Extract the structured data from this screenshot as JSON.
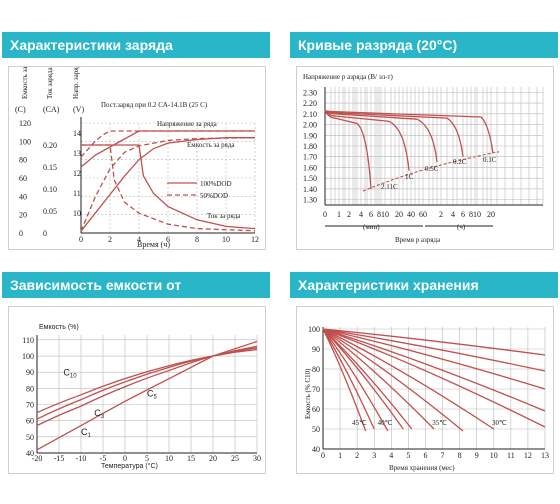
{
  "panels": {
    "charge": {
      "title": "Характеристики заряда"
    },
    "discharge": {
      "title": "Кривые разряда (20°С)"
    },
    "temperature": {
      "title": "Зависимость емкости от температуры"
    },
    "storage": {
      "title": "Характеристики хранения"
    }
  },
  "chart_data": [
    {
      "type": "line",
      "id": "charge",
      "axis_labels": {
        "capacity": {
          "name": "Емкость заряда",
          "unit": "(C)"
        },
        "current": {
          "name": "Ток заряда",
          "unit": "(CA)"
        },
        "voltage": {
          "name": "Напр. заряда",
          "unit": "(V)"
        },
        "x": "Время (ч)"
      },
      "subtitle": "Пост.заряд при 0.2  CA-14.1В (25 C)",
      "capacity_ticks": [
        "120",
        "100",
        "80",
        "60",
        "40",
        "20",
        "0"
      ],
      "current_ticks": [
        "0.20",
        "0.15",
        "0.10",
        "0.05",
        "0"
      ],
      "voltage_ticks": [
        "14",
        "13",
        "12",
        "11",
        "10"
      ],
      "x_ticks": [
        0,
        2,
        4,
        6,
        8,
        10,
        12
      ],
      "xlim": [
        0,
        12
      ],
      "annotations": [
        "Напряжение за  ряда",
        "Емкость за ряда",
        "Ток за ряда"
      ],
      "legend": [
        "100%DOD",
        "50%DOD"
      ],
      "series": [
        {
          "name": "Напряжение за  ряда 100%DOD",
          "style": "solid",
          "x": [
            0,
            0.5,
            1,
            2,
            3,
            4,
            4.5,
            6,
            8,
            10,
            12
          ],
          "y_voltage": [
            12.3,
            12.6,
            12.9,
            13.3,
            13.7,
            14.1,
            14.1,
            14.1,
            14.1,
            14.1,
            14.1
          ]
        },
        {
          "name": "Напряжение за  ряда 50%DOD",
          "style": "dashed",
          "x": [
            0,
            0.5,
            1,
            1.5,
            2,
            12
          ],
          "y_voltage": [
            12.8,
            13.2,
            13.6,
            13.9,
            14.1,
            14.1
          ]
        },
        {
          "name": "Емкость за ряда 100%DOD",
          "style": "solid",
          "x": [
            0,
            1,
            2,
            3,
            4,
            5,
            6,
            8,
            10,
            12
          ],
          "y_capacity": [
            2,
            22,
            42,
            62,
            80,
            92,
            98,
            102,
            104,
            104
          ]
        },
        {
          "name": "Емкость за ряда 50%DOD",
          "style": "dashed",
          "x": [
            0,
            1,
            2,
            3,
            4,
            6,
            8,
            12
          ],
          "y_capacity": [
            2,
            40,
            70,
            88,
            95,
            101,
            103,
            104
          ]
        },
        {
          "name": "Ток за ряда 100%DOD",
          "style": "solid",
          "x": [
            0,
            4,
            4.3,
            5,
            6,
            8,
            10,
            12
          ],
          "y_current": [
            0.2,
            0.2,
            0.13,
            0.09,
            0.06,
            0.03,
            0.015,
            0.01
          ]
        },
        {
          "name": "Ток за ряда 50%DOD",
          "style": "dashed",
          "x": [
            0,
            2,
            2.3,
            3,
            4,
            6,
            8,
            12
          ],
          "y_current": [
            0.2,
            0.2,
            0.12,
            0.07,
            0.045,
            0.02,
            0.01,
            0.005
          ]
        }
      ]
    },
    {
      "type": "line",
      "id": "discharge",
      "ylabel": "Напряжение р азряда (В/ эл-т)",
      "xlabel": "Время р азряда",
      "x_unit_labels": [
        "(мин)",
        "(ч)"
      ],
      "y_ticks": [
        "2.30",
        "2.20",
        "2.10",
        "2.00",
        "1.90",
        "1.80",
        "1.70",
        "1.60",
        "1.50",
        "1.40",
        "1.30"
      ],
      "ylim": [
        1.25,
        2.35
      ],
      "x_ticks_min": [
        "0",
        "1",
        "2",
        "4",
        "6",
        "8",
        "10",
        "20",
        "40",
        "60"
      ],
      "x_ticks_h": [
        "2",
        "4",
        "6",
        "8",
        "10",
        "20"
      ],
      "series": [
        {
          "name": "2.11C",
          "end_time": "~7 мин",
          "end_voltage": 1.4
        },
        {
          "name": "1C",
          "end_time": "~30 мин",
          "end_voltage": 1.57
        },
        {
          "name": "0.5C",
          "end_time": "~1.5 ч",
          "end_voltage": 1.65
        },
        {
          "name": "0.2C",
          "end_time": "~4 ч",
          "end_voltage": 1.7
        },
        {
          "name": "0.1C",
          "end_time": "~10 ч",
          "end_voltage": 1.73
        }
      ]
    },
    {
      "type": "line",
      "id": "temperature",
      "ylabel": "Емкость (%)",
      "xlabel": "Температура (°С)",
      "x_ticks": [
        -20,
        -15,
        -10,
        -5,
        0,
        5,
        10,
        15,
        20,
        25,
        30
      ],
      "y_ticks": [
        40,
        50,
        60,
        70,
        80,
        90,
        100,
        110
      ],
      "xlim": [
        -20,
        30
      ],
      "ylim": [
        40,
        113
      ],
      "series": [
        {
          "name": "C10",
          "x": [
            -20,
            -10,
            0,
            10,
            20,
            30
          ],
          "y": [
            65,
            76,
            86,
            94,
            100,
            104
          ]
        },
        {
          "name": "C5",
          "x": [
            -20,
            -10,
            0,
            10,
            20,
            30
          ],
          "y": [
            61,
            73,
            84,
            93,
            100,
            105
          ]
        },
        {
          "name": "C3",
          "x": [
            -20,
            -10,
            0,
            10,
            20,
            30
          ],
          "y": [
            57,
            69,
            81,
            91,
            100,
            106
          ]
        },
        {
          "name": "C1",
          "x": [
            -20,
            -10,
            0,
            10,
            20,
            30
          ],
          "y": [
            42,
            57,
            72,
            86,
            100,
            109
          ]
        }
      ]
    },
    {
      "type": "line",
      "id": "storage",
      "ylabel": "Емкость (% С10)",
      "xlabel": "Время хранения (мес)",
      "x_ticks": [
        0,
        1,
        2,
        3,
        4,
        5,
        6,
        7,
        8,
        9,
        10,
        11,
        12,
        13
      ],
      "y_ticks": [
        40,
        50,
        60,
        70,
        80,
        90,
        100
      ],
      "xlim": [
        0,
        13
      ],
      "ylim": [
        40,
        101
      ],
      "curve_labels": [
        "45℃",
        "40℃",
        "35℃",
        "30℃"
      ],
      "series": [
        {
          "name": "45℃",
          "x": [
            0,
            2.5
          ],
          "y": [
            100,
            49
          ]
        },
        {
          "name": "",
          "x": [
            0,
            3
          ],
          "y": [
            100,
            50
          ]
        },
        {
          "name": "40℃",
          "x": [
            0,
            3.8
          ],
          "y": [
            100,
            49
          ]
        },
        {
          "name": "",
          "x": [
            0,
            4.7
          ],
          "y": [
            100,
            50
          ]
        },
        {
          "name": "35℃",
          "x": [
            0,
            5.2
          ],
          "y": [
            100,
            50
          ]
        },
        {
          "name": "",
          "x": [
            0,
            6.5
          ],
          "y": [
            100,
            50
          ]
        },
        {
          "name": "30℃",
          "x": [
            0,
            8.2
          ],
          "y": [
            100,
            49
          ]
        },
        {
          "name": "",
          "x": [
            0,
            10
          ],
          "y": [
            100,
            50
          ]
        },
        {
          "name": "",
          "x": [
            0,
            13
          ],
          "y": [
            100,
            51
          ]
        },
        {
          "name": "",
          "x": [
            0,
            13
          ],
          "y": [
            100,
            59
          ]
        },
        {
          "name": "",
          "x": [
            0,
            13
          ],
          "y": [
            100,
            70
          ]
        },
        {
          "name": "",
          "x": [
            0,
            13
          ],
          "y": [
            100,
            79
          ]
        },
        {
          "name": "",
          "x": [
            0,
            13
          ],
          "y": [
            100,
            87
          ]
        }
      ]
    }
  ]
}
